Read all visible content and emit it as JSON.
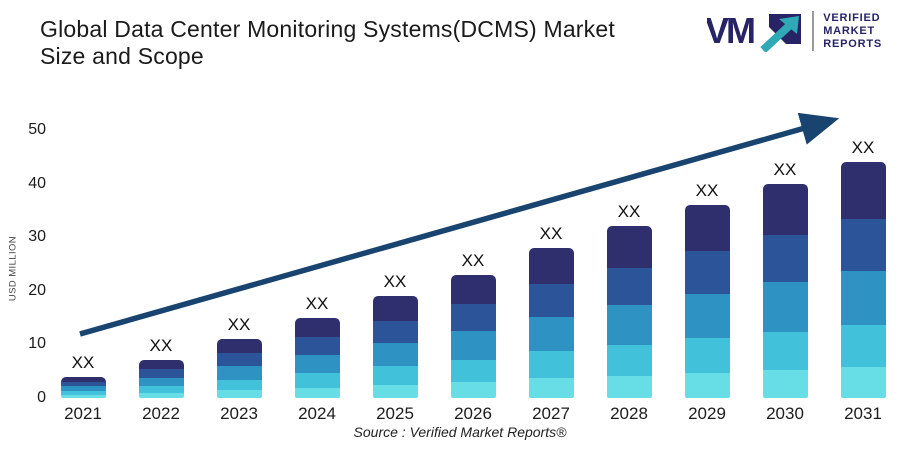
{
  "header": {
    "title_line1": "Global Data Center Monitoring Systems(DCMS) Market",
    "title_line2": "Size and Scope",
    "logo": {
      "mark_letters": "VM",
      "name_lines": [
        "VERIFIED",
        "MARKET",
        "REPORTS"
      ],
      "navy": "#272365",
      "teal": "#2fa9b6"
    }
  },
  "chart_data": {
    "type": "bar",
    "stacked": true,
    "title": "Global Data Center Monitoring Systems(DCMS) Market Size and Scope",
    "xlabel": "",
    "ylabel": "USD MILLION",
    "ylim": [
      0,
      50
    ],
    "yticks": [
      0,
      10,
      20,
      30,
      40,
      50
    ],
    "grid": false,
    "legend": "none",
    "categories": [
      "2021",
      "2022",
      "2023",
      "2024",
      "2025",
      "2026",
      "2027",
      "2028",
      "2029",
      "2030",
      "2031"
    ],
    "bar_value_label": "XX",
    "estimated_totals": [
      4,
      7,
      11,
      15,
      19,
      23,
      28,
      32,
      36,
      40,
      44
    ],
    "segment_fractions_top_to_bottom": [
      0.24,
      0.22,
      0.23,
      0.18,
      0.13
    ],
    "segment_colors_top_to_bottom": [
      "#302f6e",
      "#2b5499",
      "#2e93c3",
      "#41c2da",
      "#67dee6"
    ],
    "trend_arrow": {
      "present": true,
      "direction": "up-right",
      "color": "#1a4470"
    },
    "source": "Source :  Verified Market Reports®"
  }
}
